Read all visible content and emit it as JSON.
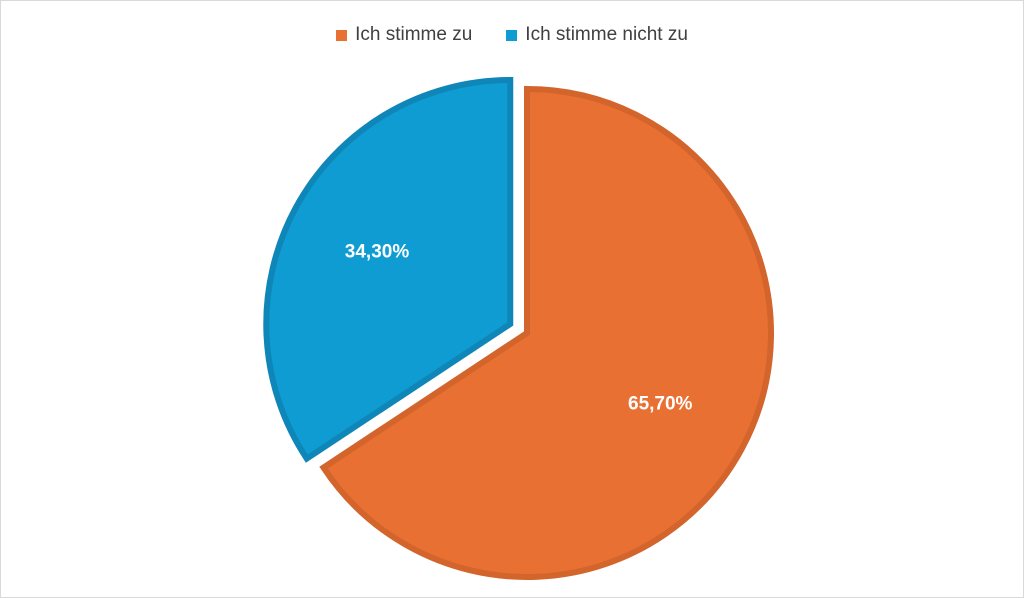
{
  "chart_data": {
    "type": "pie",
    "categories": [
      "Ich stimme zu",
      "Ich stimme nicht zu"
    ],
    "values": [
      65.7,
      34.3
    ],
    "data_labels": [
      "65,70%",
      "34,30%"
    ],
    "legend": [
      "Ich stimme zu",
      "Ich stimme nicht zu"
    ],
    "legend_placement": "top",
    "colors": [
      "#E87033",
      "#0F9CD3"
    ],
    "border_colors": [
      "#D3642B",
      "#0E86B7"
    ],
    "exploded_slice": 1
  }
}
